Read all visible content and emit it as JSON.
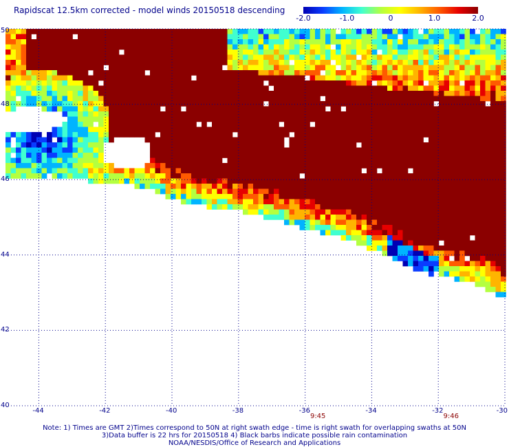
{
  "title": "Rapidscat 12.5km corrected - model winds 20150518 descending",
  "colorbar": {
    "ticks": [
      {
        "label": "-2.0",
        "value": -2.0
      },
      {
        "label": "-1.0",
        "value": -1.0
      },
      {
        "label": "0",
        "value": 0
      },
      {
        "label": "1.0",
        "value": 1.0
      },
      {
        "label": "2.0",
        "value": 2.0
      }
    ],
    "colors": [
      "#0000b4",
      "#0a3cff",
      "#00b4ff",
      "#40ffd0",
      "#b4ff40",
      "#ffff00",
      "#ffb400",
      "#ff5a00",
      "#e60000",
      "#8b0000"
    ]
  },
  "chart_data": {
    "type": "heatmap",
    "title": "Rapidscat 12.5km corrected - model winds 20150518 descending",
    "xlim": [
      -45,
      -30
    ],
    "ylim": [
      40,
      50
    ],
    "x_ticks": [
      -44,
      -42,
      -40,
      -38,
      -36,
      -34,
      -32,
      -30
    ],
    "y_ticks": [
      40,
      42,
      44,
      46,
      48,
      50
    ],
    "x_tick_labels": [
      "-44",
      "-42",
      "-40",
      "-38",
      "-36",
      "-34",
      "-32",
      "-30"
    ],
    "y_tick_labels": [
      "40",
      "42",
      "44",
      "46",
      "48",
      "50"
    ],
    "grid": true,
    "value_range": [
      -2.0,
      2.0
    ],
    "swath_times": [
      {
        "label": "9:45",
        "lon": -35.6
      },
      {
        "label": "9:46",
        "lon": -31.6
      }
    ]
  },
  "notes": [
    "Note: 1) Times are GMT 2)Times correspond to 50N at right swath edge - time is right swath for overlapping swaths at 50N",
    "3)Data buffer is 22 hrs for 20150518 4) Black barbs indicate possible rain contamination",
    "NOAA/NESDIS/Office of Research and Applications"
  ]
}
